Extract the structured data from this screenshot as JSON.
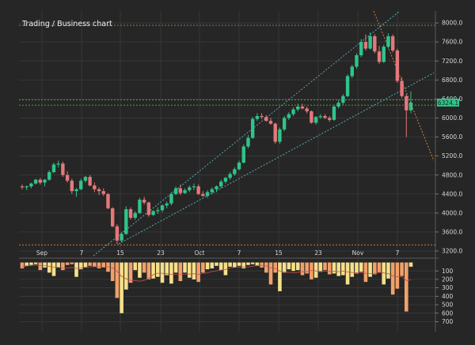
{
  "chart_data": {
    "type": "candlestick",
    "title": "Trading / Business chart",
    "price_axis": {
      "ticks": [
        "8000.0",
        "7600.0",
        "7200.0",
        "6800.0",
        "6400.0",
        "6000.0",
        "5600.0",
        "5200.0",
        "4800.0",
        "4400.0",
        "4000.0",
        "3600.0",
        "3200.0"
      ],
      "range": [
        3050,
        8250
      ]
    },
    "last_price": {
      "label": "6324.1",
      "value": 6324
    },
    "volume_axis": {
      "ticks": [
        "100",
        "200",
        "300",
        "400",
        "500",
        "600",
        "700"
      ],
      "range": [
        0,
        760
      ]
    },
    "x_ticks": [
      "Sep",
      "7",
      "15",
      "23",
      "Oct",
      "7",
      "15",
      "23",
      "Nov",
      "7"
    ],
    "horizontal_levels": [
      {
        "value": 7950,
        "color": "#5fa84a"
      },
      {
        "value": 6380,
        "color": "#5fa84a"
      },
      {
        "value": 6270,
        "color": "#5fa84a"
      },
      {
        "value": 3330,
        "color": "#e8893a"
      }
    ],
    "candles": [
      [
        4560,
        4600,
        4500,
        4540
      ],
      [
        4540,
        4580,
        4480,
        4560
      ],
      [
        4560,
        4640,
        4520,
        4620
      ],
      [
        4620,
        4720,
        4600,
        4700
      ],
      [
        4700,
        4740,
        4600,
        4640
      ],
      [
        4640,
        4720,
        4560,
        4700
      ],
      [
        4700,
        4900,
        4680,
        4860
      ],
      [
        4860,
        5060,
        4840,
        5020
      ],
      [
        5020,
        5100,
        4960,
        5040
      ],
      [
        5040,
        5080,
        4760,
        4800
      ],
      [
        4800,
        4880,
        4640,
        4680
      ],
      [
        4680,
        4720,
        4400,
        4460
      ],
      [
        4460,
        4520,
        4340,
        4500
      ],
      [
        4500,
        4720,
        4480,
        4680
      ],
      [
        4680,
        4780,
        4640,
        4760
      ],
      [
        4760,
        4800,
        4560,
        4580
      ],
      [
        4580,
        4640,
        4440,
        4500
      ],
      [
        4500,
        4540,
        4380,
        4460
      ],
      [
        4460,
        4520,
        4360,
        4400
      ],
      [
        4400,
        4420,
        4080,
        4100
      ],
      [
        4100,
        4120,
        3700,
        3720
      ],
      [
        3720,
        3760,
        3350,
        3420
      ],
      [
        3420,
        3600,
        3380,
        3560
      ],
      [
        3560,
        4140,
        3540,
        4080
      ],
      [
        4080,
        4120,
        3860,
        3900
      ],
      [
        3900,
        4040,
        3860,
        4000
      ],
      [
        4000,
        4320,
        3980,
        4280
      ],
      [
        4280,
        4340,
        4180,
        4220
      ],
      [
        4220,
        4240,
        3920,
        3960
      ],
      [
        3960,
        4060,
        3940,
        4040
      ],
      [
        4040,
        4120,
        3980,
        4060
      ],
      [
        4060,
        4180,
        4020,
        4160
      ],
      [
        4160,
        4240,
        4100,
        4200
      ],
      [
        4200,
        4440,
        4160,
        4400
      ],
      [
        4400,
        4560,
        4380,
        4520
      ],
      [
        4520,
        4600,
        4380,
        4420
      ],
      [
        4420,
        4520,
        4400,
        4480
      ],
      [
        4480,
        4580,
        4440,
        4540
      ],
      [
        4540,
        4620,
        4480,
        4560
      ],
      [
        4560,
        4600,
        4380,
        4400
      ],
      [
        4400,
        4460,
        4340,
        4360
      ],
      [
        4360,
        4480,
        4320,
        4440
      ],
      [
        4440,
        4540,
        4400,
        4500
      ],
      [
        4500,
        4580,
        4440,
        4560
      ],
      [
        4560,
        4700,
        4520,
        4660
      ],
      [
        4660,
        4760,
        4620,
        4740
      ],
      [
        4740,
        4860,
        4700,
        4820
      ],
      [
        4820,
        4960,
        4780,
        4920
      ],
      [
        4920,
        5100,
        4900,
        5060
      ],
      [
        5060,
        5440,
        5040,
        5400
      ],
      [
        5400,
        5640,
        5360,
        5580
      ],
      [
        5580,
        6020,
        5560,
        5980
      ],
      [
        5980,
        6100,
        5940,
        6040
      ],
      [
        6040,
        6100,
        5980,
        6020
      ],
      [
        6020,
        6060,
        5920,
        5940
      ],
      [
        5940,
        6000,
        5860,
        5880
      ],
      [
        5880,
        5900,
        5460,
        5500
      ],
      [
        5500,
        5800,
        5460,
        5760
      ],
      [
        5760,
        6040,
        5720,
        6000
      ],
      [
        6000,
        6120,
        5960,
        6080
      ],
      [
        6080,
        6220,
        6040,
        6180
      ],
      [
        6180,
        6300,
        6140,
        6240
      ],
      [
        6240,
        6300,
        6180,
        6200
      ],
      [
        6200,
        6240,
        6100,
        6140
      ],
      [
        6140,
        6160,
        5880,
        5900
      ],
      [
        5900,
        6040,
        5860,
        6020
      ],
      [
        6020,
        6080,
        5980,
        6040
      ],
      [
        6040,
        6080,
        5980,
        6000
      ],
      [
        6000,
        6040,
        5920,
        5960
      ],
      [
        5960,
        6280,
        5940,
        6240
      ],
      [
        6240,
        6380,
        6200,
        6320
      ],
      [
        6320,
        6500,
        6280,
        6460
      ],
      [
        6460,
        6920,
        6440,
        6880
      ],
      [
        6880,
        7120,
        6840,
        7080
      ],
      [
        7080,
        7360,
        7040,
        7320
      ],
      [
        7320,
        7660,
        7280,
        7600
      ],
      [
        7600,
        7760,
        7420,
        7460
      ],
      [
        7460,
        7800,
        7440,
        7720
      ],
      [
        7720,
        7760,
        7360,
        7400
      ],
      [
        7400,
        7520,
        7140,
        7180
      ],
      [
        7180,
        7540,
        7160,
        7500
      ],
      [
        7500,
        7780,
        7460,
        7720
      ],
      [
        7720,
        7760,
        7380,
        7420
      ],
      [
        7420,
        7460,
        6740,
        6780
      ],
      [
        6780,
        6860,
        6420,
        6460
      ],
      [
        6460,
        6500,
        5600,
        6160
      ],
      [
        6160,
        6560,
        6100,
        6324
      ]
    ],
    "volumes": [
      70,
      40,
      30,
      20,
      90,
      60,
      120,
      160,
      60,
      90,
      30,
      20,
      170,
      80,
      60,
      40,
      50,
      70,
      60,
      110,
      220,
      420,
      600,
      320,
      240,
      90,
      180,
      120,
      200,
      190,
      170,
      240,
      150,
      250,
      120,
      220,
      120,
      180,
      200,
      230,
      120,
      80,
      70,
      40,
      90,
      150,
      50,
      60,
      40,
      70,
      30,
      20,
      40,
      60,
      120,
      260,
      120,
      340,
      120,
      80,
      100,
      90,
      150,
      130,
      200,
      180,
      110,
      90,
      140,
      130,
      160,
      150,
      260,
      170,
      130,
      110,
      230,
      170,
      140,
      120,
      260,
      190,
      380,
      310,
      160,
      580,
      50
    ]
  }
}
